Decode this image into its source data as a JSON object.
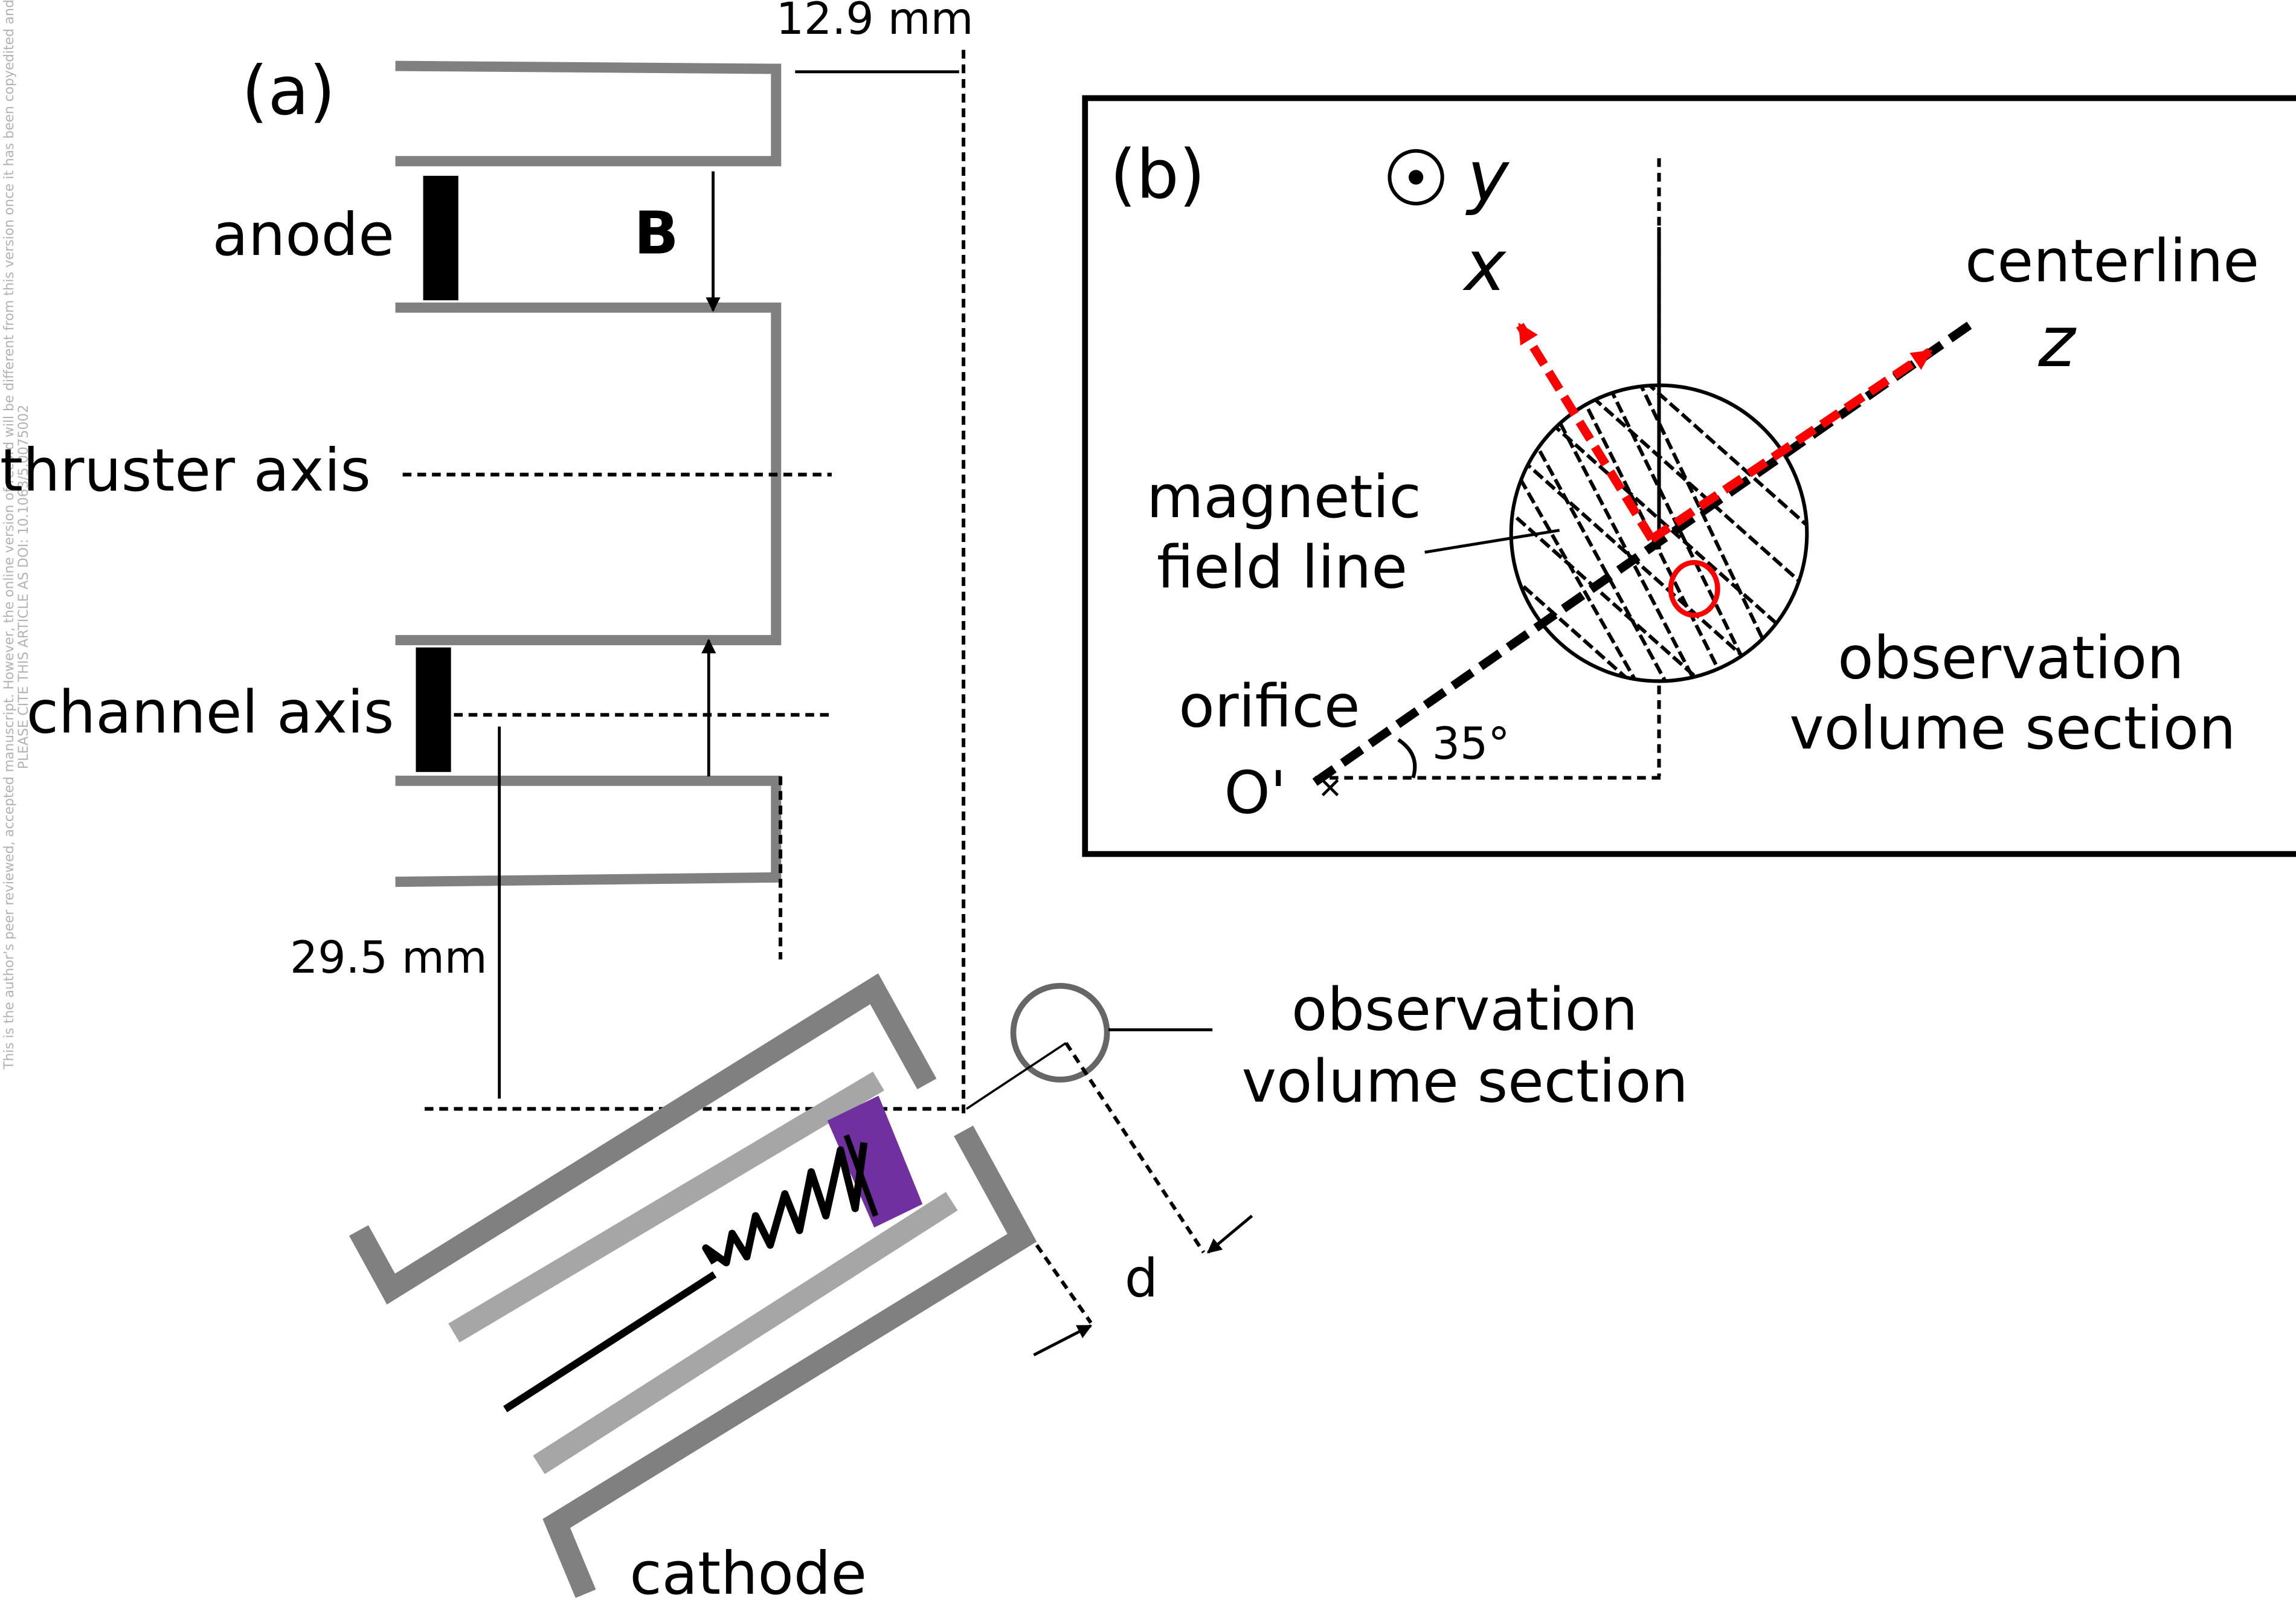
{
  "panel_a": {
    "label": "(a)",
    "dim_top": "12.9 mm",
    "anode_label": "anode",
    "b_label": "B",
    "thruster_axis_label": "thruster axis",
    "channel_axis_label": "channel axis",
    "dim_left": "29.5 mm",
    "obs_label_line1": "observation",
    "obs_label_line2": "volume section",
    "d_label": "d",
    "cathode_label": "cathode"
  },
  "panel_b": {
    "label": "(b)",
    "y_label": "y",
    "x_label": "x",
    "centerline_label": "centerline",
    "z_label": "z",
    "field_line_label_1": "magnetic",
    "field_line_label_2": "field line",
    "obs_label_line1": "observation",
    "obs_label_line2": "volume section",
    "orifice_label": "orifice",
    "o_prime_label": "O'",
    "o_label": "O",
    "angle_label": "35°"
  },
  "watermark": {
    "line1": "This is the author's peer reviewed, accepted manuscript. However, the online version of record will be different from this version once it has been copyedited and typeset.",
    "line2": "PLEASE CITE THIS ARTICLE AS DOI: 10.1063/5.0075002"
  },
  "colors": {
    "wall_gray": "#808080",
    "inner_gray": "#a6a6a6",
    "emitter_purple": "#7030a0",
    "arrow_red": "#ff0000"
  }
}
